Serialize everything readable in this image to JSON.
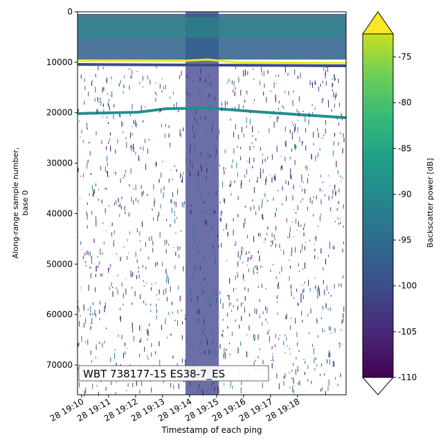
{
  "chart_data": {
    "type": "echogram",
    "xlabel": "Timestamp of each ping",
    "ylabel": [
      "Along-range sample number,",
      "base 0"
    ],
    "annotation": "WBT 738177-15 ES38-7_ES",
    "xlim": [
      9.85,
      19.8
    ],
    "xticks": [
      {
        "value": 10,
        "label": "28 19:10"
      },
      {
        "value": 11,
        "label": "28 19:11"
      },
      {
        "value": 12,
        "label": "28 19:12"
      },
      {
        "value": 13,
        "label": "28 19:13"
      },
      {
        "value": 14,
        "label": "28 19:14"
      },
      {
        "value": 15,
        "label": "28 19:15"
      },
      {
        "value": 16,
        "label": "28 19:16"
      },
      {
        "value": 17,
        "label": "28 19:17"
      },
      {
        "value": 18,
        "label": "28 19:18"
      }
    ],
    "ylim": [
      0,
      75900
    ],
    "y_inverted": true,
    "yticks": [
      0,
      10000,
      20000,
      30000,
      40000,
      50000,
      60000,
      70000
    ],
    "colorbar": {
      "label": "Backscatter power [dB]",
      "lim": [
        -110,
        -72.5
      ],
      "ticks": [
        -75,
        -80,
        -85,
        -90,
        -95,
        -100,
        -105,
        -110
      ],
      "colormap": "viridis",
      "extend": "both"
    }
  }
}
